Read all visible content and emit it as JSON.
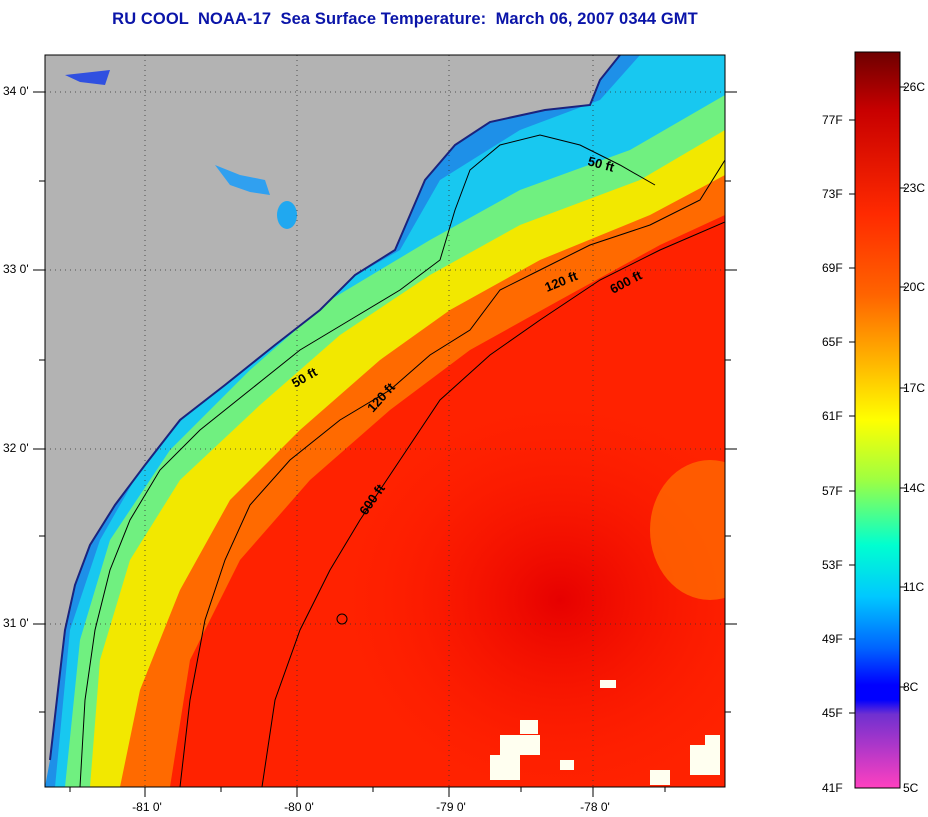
{
  "title": "RU COOL  NOAA-17  Sea Surface Temperature:  March 06, 2007 0344 GMT",
  "map": {
    "lat_labels": [
      "34 0'",
      "33 0'",
      "32 0'",
      "31 0'"
    ],
    "lon_labels": [
      "-81 0'",
      "-80 0'",
      "-79 0'",
      "-78 0'"
    ],
    "contours": [
      {
        "label": "50 ft"
      },
      {
        "label": "120 ft"
      },
      {
        "label": "600 ft"
      },
      {
        "label": "50 ft"
      },
      {
        "label": "120 ft"
      },
      {
        "label": "600 ft"
      }
    ],
    "land_color": "#b3b3b3"
  },
  "colorbar": {
    "fahrenheit_labels": [
      "77F",
      "73F",
      "69F",
      "65F",
      "61F",
      "57F",
      "53F",
      "49F",
      "45F",
      "41F"
    ],
    "celsius_labels": [
      "26C",
      "23C",
      "20C",
      "17C",
      "14C",
      "11C",
      "8C",
      "5C"
    ],
    "colors_top_to_bottom": [
      "#6e0000",
      "#c80000",
      "#ff2a00",
      "#ff6400",
      "#ffb400",
      "#ffff00",
      "#a0ff40",
      "#00ffd0",
      "#00c8ff",
      "#0064ff",
      "#0000ff",
      "#8020d0",
      "#ff40c0"
    ]
  }
}
